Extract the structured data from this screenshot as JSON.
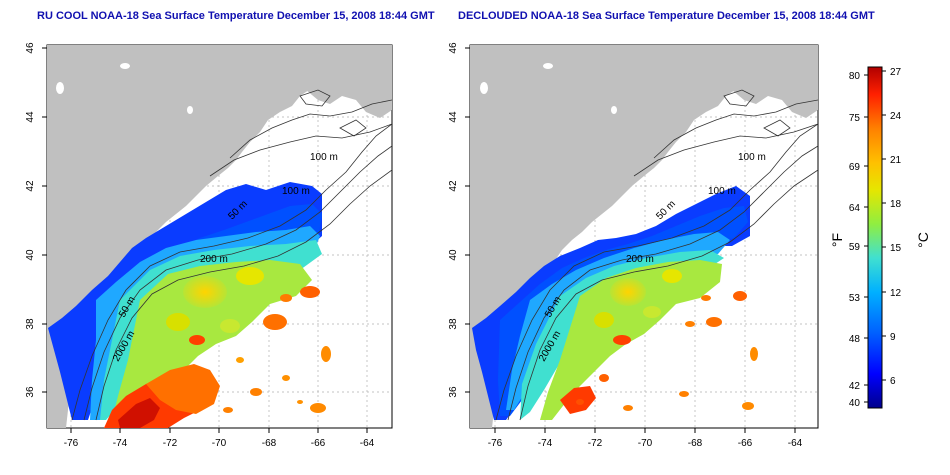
{
  "panels": [
    {
      "title": "RU COOL NOAA-18 Sea Surface Temperature December 15, 2008 18:44 GMT",
      "contour_labels": [
        "100 m",
        "100 m",
        "50 m",
        "200 m",
        "50 m",
        "2000 m"
      ]
    },
    {
      "title": "DECLOUDED NOAA-18 Sea Surface Temperature December 15, 2008 18:44 GMT",
      "contour_labels": [
        "100 m",
        "100 m",
        "50 m",
        "200 m",
        "50 m",
        "2000 m"
      ]
    }
  ],
  "axes": {
    "x_ticks": [
      "-76",
      "-74",
      "-72",
      "-70",
      "-68",
      "-66",
      "-64"
    ],
    "y_ticks": [
      "36",
      "38",
      "40",
      "42",
      "44",
      "46"
    ]
  },
  "colorbar": {
    "left_unit": "°F",
    "right_unit": "°C",
    "f_ticks": [
      "80",
      "75",
      "69",
      "64",
      "59",
      "53",
      "48",
      "42",
      "40"
    ],
    "c_ticks": [
      "27",
      "24",
      "21",
      "18",
      "15",
      "12",
      "9",
      "6"
    ],
    "colors": [
      "#00008c",
      "#0000ff",
      "#0060ff",
      "#00b0ff",
      "#40e0d0",
      "#90ee40",
      "#e6e600",
      "#ffc000",
      "#ff8000",
      "#ff2000",
      "#b00000"
    ]
  },
  "colors": {
    "land": "#c0c0c0",
    "title": "#1010b0",
    "grid": "#b0b0b0"
  }
}
